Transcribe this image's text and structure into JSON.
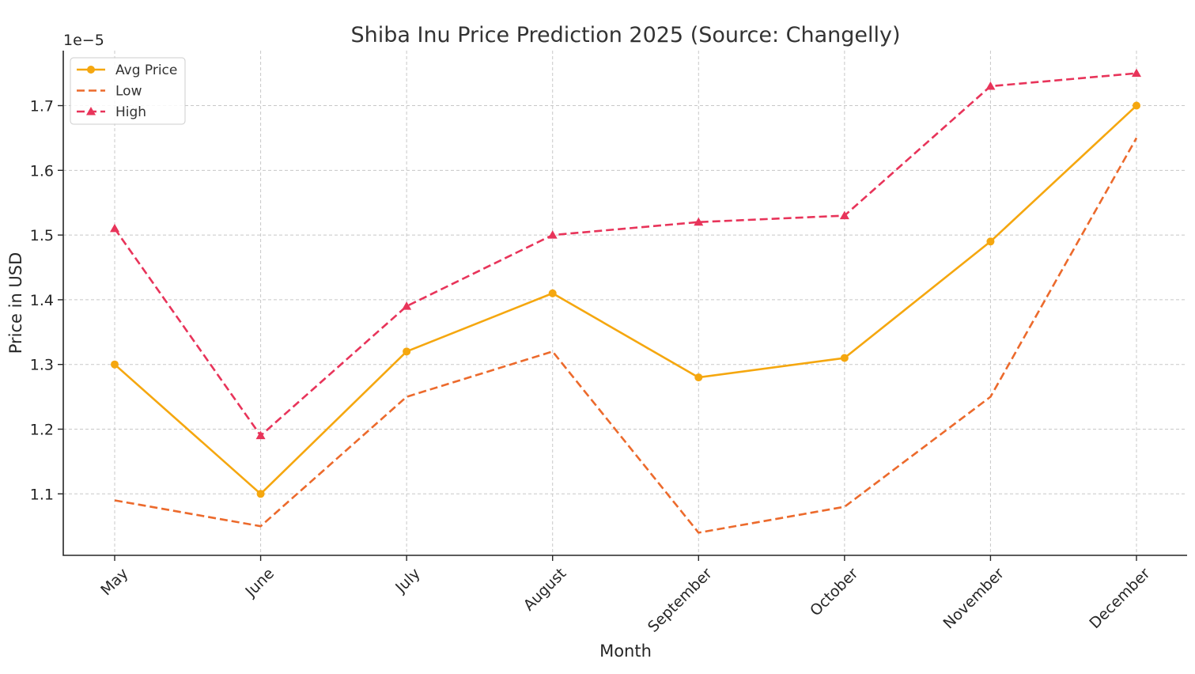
{
  "chart_data": {
    "type": "line",
    "title": "Shiba Inu Price Prediction 2025 (Source: Changelly)",
    "xlabel": "Month",
    "ylabel": "Price in USD",
    "y_offset_text": "1e−5",
    "categories": [
      "May",
      "June",
      "July",
      "August",
      "September",
      "October",
      "November",
      "December"
    ],
    "yticks": [
      "1.1",
      "1.2",
      "1.3",
      "1.4",
      "1.5",
      "1.6",
      "1.7"
    ],
    "ylim": [
      1.005,
      1.785
    ],
    "grid": true,
    "legend_position": "upper-left",
    "series": [
      {
        "name": "Avg Price",
        "values": [
          1.3,
          1.1,
          1.32,
          1.41,
          1.28,
          1.31,
          1.49,
          1.7
        ],
        "color": "#f5a70f",
        "line_style": "solid",
        "marker": "circle"
      },
      {
        "name": "Low",
        "values": [
          1.09,
          1.05,
          1.25,
          1.32,
          1.04,
          1.08,
          1.25,
          1.65
        ],
        "color": "#ec6a2c",
        "line_style": "dashed",
        "marker": "none"
      },
      {
        "name": "High",
        "values": [
          1.51,
          1.19,
          1.39,
          1.5,
          1.52,
          1.53,
          1.73,
          1.75
        ],
        "color": "#e8345a",
        "line_style": "dashed",
        "marker": "triangle"
      }
    ]
  }
}
